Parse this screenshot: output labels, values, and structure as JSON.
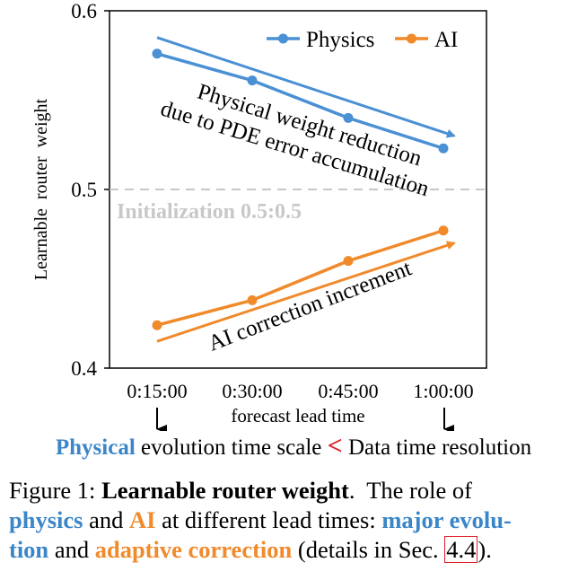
{
  "chart_data": {
    "type": "line",
    "ylabel": "Learnable  router  weight",
    "xlabel": "forecast lead time",
    "categories": [
      "0:15:00",
      "0:30:00",
      "0:45:00",
      "1:00:00"
    ],
    "yticks": [
      "0.4",
      "0.5",
      "0.6"
    ],
    "ylim": [
      0.4,
      0.6
    ],
    "grid": false,
    "legend_position": "top-right",
    "series": [
      {
        "name": "Physics",
        "values": [
          0.576,
          0.561,
          0.54,
          0.523
        ],
        "color": "#4a90d4"
      },
      {
        "name": "AI",
        "values": [
          0.424,
          0.438,
          0.46,
          0.477
        ],
        "color": "#f08a2b"
      }
    ],
    "trend_arrows": [
      {
        "series": "Physics",
        "from": [
          0.585,
          0.585
        ],
        "to": [
          0.53,
          0.53
        ],
        "color": "#4a90d4"
      },
      {
        "series": "AI",
        "from": [
          0.415,
          0.415
        ],
        "to": [
          0.47,
          0.47
        ],
        "color": "#f08a2b"
      }
    ],
    "init_line": {
      "value": 0.5,
      "label": "Initialization 0.5:0.5",
      "color": "#c8c8c8"
    },
    "annotations": {
      "physics_line1": "Physical weight reduction",
      "physics_line2": "due to PDE error accumulation",
      "ai": "AI correction increment"
    }
  },
  "below_text": {
    "physical": "Physical",
    "middle": " evolution time scale ",
    "lt": "<",
    "data": " Data time resolution"
  },
  "caption": {
    "figure": "Figure 1:",
    "title": "Learnable router weight",
    "period": ".",
    "role": "  The role of",
    "physics": "physics",
    "and1": " and ",
    "ai": "AI",
    "at": " at different lead times: ",
    "major1": "major evolu-",
    "major2": "tion",
    "and2": " and ",
    "adaptive": "adaptive correction",
    "details": " (details in Sec. ",
    "ref": "4.4",
    "end": ")."
  }
}
